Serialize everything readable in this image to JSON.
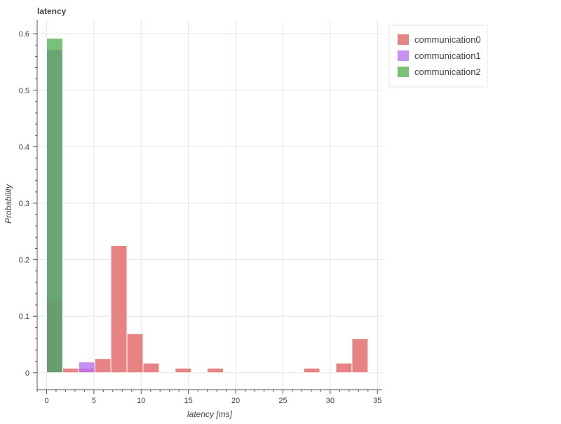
{
  "chart_data": {
    "type": "bar",
    "title": "latency",
    "xlabel": "latency [ms]",
    "ylabel": "Probability",
    "xlim": [
      -1.0,
      35.5
    ],
    "ylim": [
      -0.03,
      0.625
    ],
    "xticks": [
      0,
      5,
      10,
      15,
      20,
      25,
      30,
      35
    ],
    "yticks": [
      0,
      0.1,
      0.2,
      0.3,
      0.4,
      0.5,
      0.6
    ],
    "grid": true,
    "legend_position": "top-right",
    "series": [
      {
        "name": "communication0",
        "color": "#e05a5a",
        "bins": [
          {
            "x0": 0.0,
            "x1": 1.7,
            "value": 0.13
          },
          {
            "x0": 1.7,
            "x1": 3.4,
            "value": 0.008
          },
          {
            "x0": 3.4,
            "x1": 5.1,
            "value": 0.008
          },
          {
            "x0": 5.1,
            "x1": 6.8,
            "value": 0.025
          },
          {
            "x0": 6.8,
            "x1": 8.5,
            "value": 0.225
          },
          {
            "x0": 8.5,
            "x1": 10.2,
            "value": 0.069
          },
          {
            "x0": 10.2,
            "x1": 11.9,
            "value": 0.017
          },
          {
            "x0": 13.6,
            "x1": 15.3,
            "value": 0.008
          },
          {
            "x0": 17.0,
            "x1": 18.7,
            "value": 0.008
          },
          {
            "x0": 27.2,
            "x1": 28.9,
            "value": 0.008
          },
          {
            "x0": 30.6,
            "x1": 32.3,
            "value": 0.017
          },
          {
            "x0": 32.3,
            "x1": 34.0,
            "value": 0.06
          }
        ]
      },
      {
        "name": "communication1",
        "color": "#b56cf2",
        "bins": [
          {
            "x0": 0.0,
            "x1": 1.7,
            "value": 0.572
          },
          {
            "x0": 3.4,
            "x1": 5.1,
            "value": 0.019
          }
        ]
      },
      {
        "name": "communication2",
        "color": "#4aae4a",
        "bins": [
          {
            "x0": 0.0,
            "x1": 1.7,
            "value": 0.592
          }
        ]
      }
    ]
  }
}
